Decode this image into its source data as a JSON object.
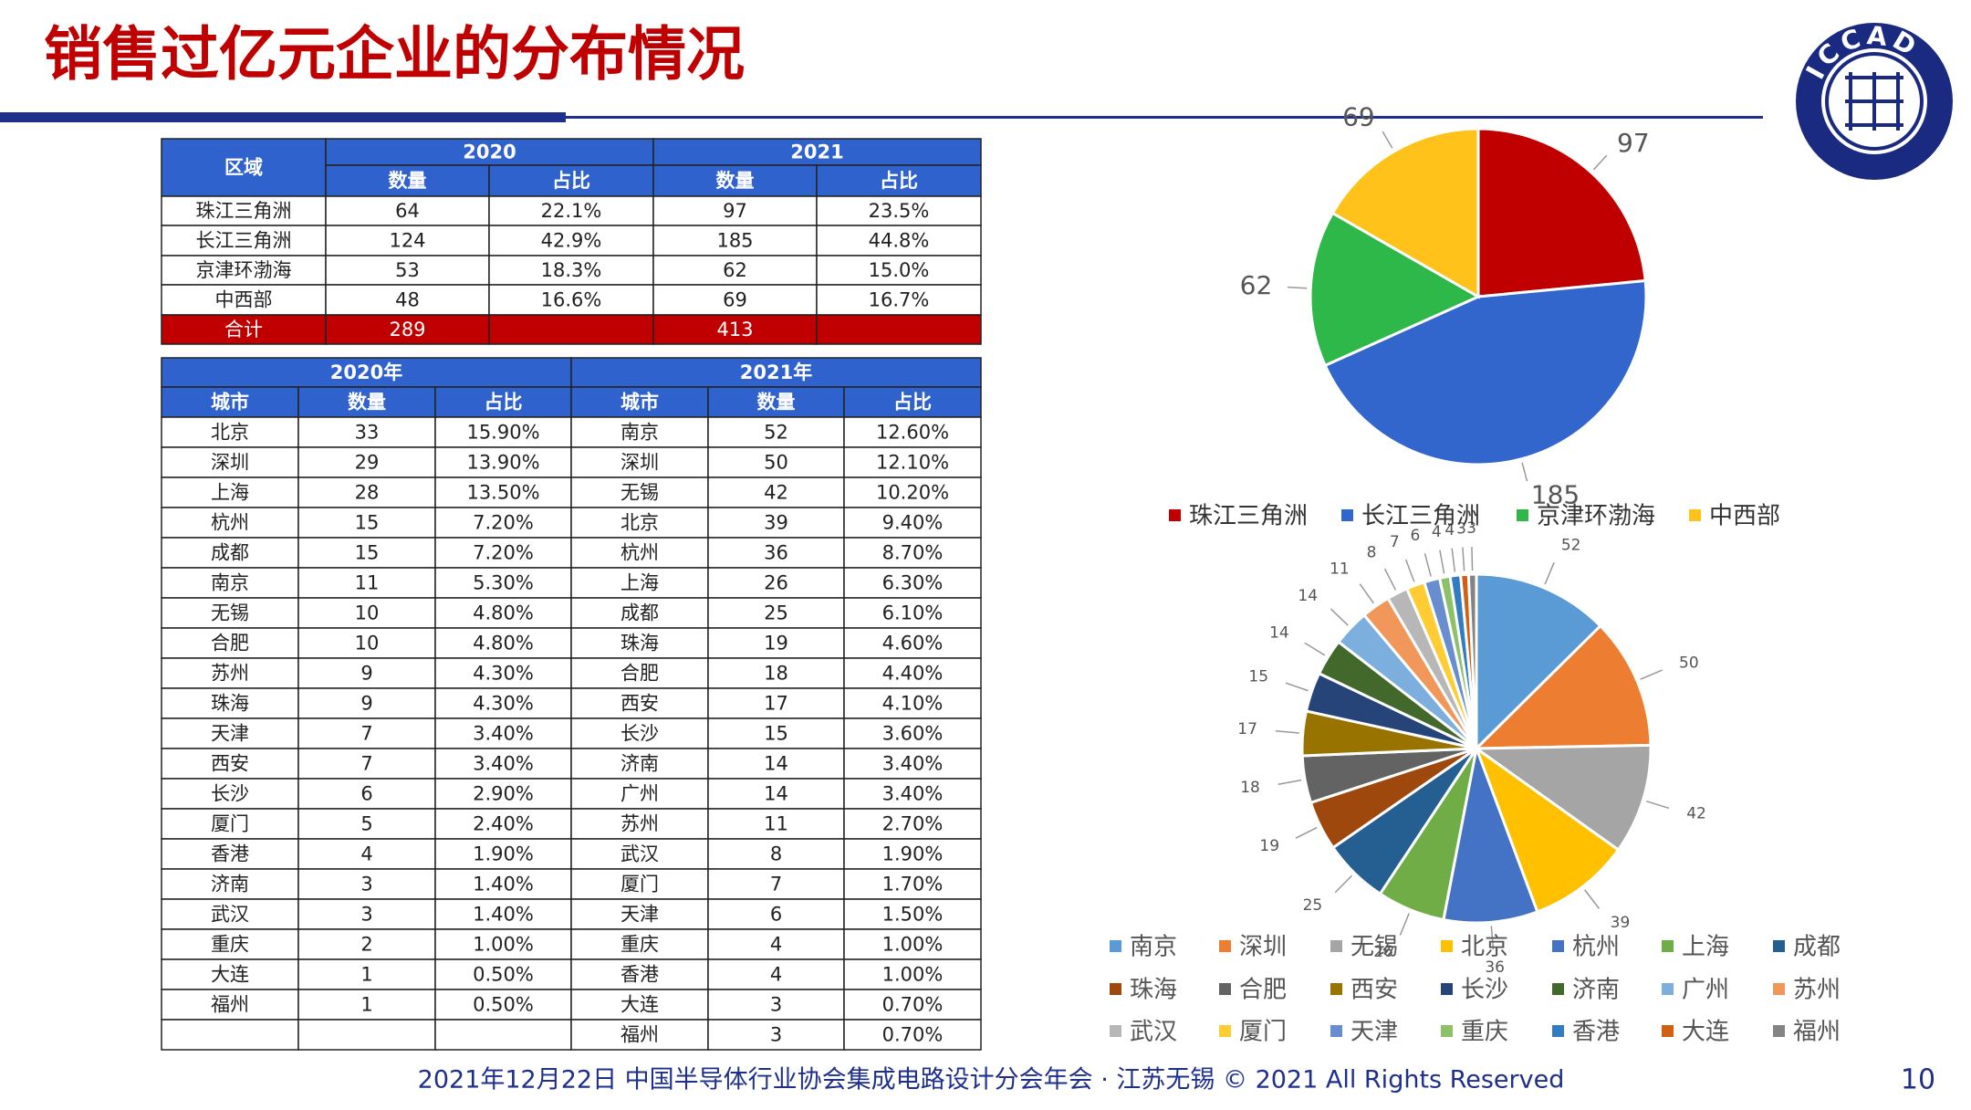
{
  "title": "销售过亿元企业的分布情况",
  "logo": "ICCAD",
  "region_table": {
    "region_header": "区域",
    "years": [
      "2020",
      "2021"
    ],
    "subheaders": [
      "数量",
      "占比"
    ],
    "rows": [
      [
        "珠江三角洲",
        64,
        "22.1%",
        97,
        "23.5%"
      ],
      [
        "长江三角洲",
        124,
        "42.9%",
        185,
        "44.8%"
      ],
      [
        "京津环渤海",
        53,
        "18.3%",
        62,
        "15.0%"
      ],
      [
        "中西部",
        48,
        "16.6%",
        69,
        "16.7%"
      ]
    ],
    "total": [
      "合计",
      289,
      413
    ]
  },
  "city_table": {
    "years": [
      "2020年",
      "2021年"
    ],
    "subheaders": [
      "城市",
      "数量",
      "占比"
    ],
    "y2020": [
      [
        "北京",
        33,
        "15.90%"
      ],
      [
        "深圳",
        29,
        "13.90%"
      ],
      [
        "上海",
        28,
        "13.50%"
      ],
      [
        "杭州",
        15,
        "7.20%"
      ],
      [
        "成都",
        15,
        "7.20%"
      ],
      [
        "南京",
        11,
        "5.30%"
      ],
      [
        "无锡",
        10,
        "4.80%"
      ],
      [
        "合肥",
        10,
        "4.80%"
      ],
      [
        "苏州",
        9,
        "4.30%"
      ],
      [
        "珠海",
        9,
        "4.30%"
      ],
      [
        "天津",
        7,
        "3.40%"
      ],
      [
        "西安",
        7,
        "3.40%"
      ],
      [
        "长沙",
        6,
        "2.90%"
      ],
      [
        "厦门",
        5,
        "2.40%"
      ],
      [
        "香港",
        4,
        "1.90%"
      ],
      [
        "济南",
        3,
        "1.40%"
      ],
      [
        "武汉",
        3,
        "1.40%"
      ],
      [
        "重庆",
        2,
        "1.00%"
      ],
      [
        "大连",
        1,
        "0.50%"
      ],
      [
        "福州",
        1,
        "0.50%"
      ]
    ],
    "y2021": [
      [
        "南京",
        52,
        "12.60%"
      ],
      [
        "深圳",
        50,
        "12.10%"
      ],
      [
        "无锡",
        42,
        "10.20%"
      ],
      [
        "北京",
        39,
        "9.40%"
      ],
      [
        "杭州",
        36,
        "8.70%"
      ],
      [
        "上海",
        26,
        "6.30%"
      ],
      [
        "成都",
        25,
        "6.10%"
      ],
      [
        "珠海",
        19,
        "4.60%"
      ],
      [
        "合肥",
        18,
        "4.40%"
      ],
      [
        "西安",
        17,
        "4.10%"
      ],
      [
        "长沙",
        15,
        "3.60%"
      ],
      [
        "济南",
        14,
        "3.40%"
      ],
      [
        "广州",
        14,
        "3.40%"
      ],
      [
        "苏州",
        11,
        "2.70%"
      ],
      [
        "武汉",
        8,
        "1.90%"
      ],
      [
        "厦门",
        7,
        "1.70%"
      ],
      [
        "天津",
        6,
        "1.50%"
      ],
      [
        "重庆",
        4,
        "1.00%"
      ],
      [
        "香港",
        4,
        "1.00%"
      ],
      [
        "大连",
        3,
        "0.70%"
      ],
      [
        "福州",
        3,
        "0.70%"
      ]
    ]
  },
  "chart_data": [
    {
      "type": "pie",
      "categories": [
        "珠江三角洲",
        "长江三角洲",
        "京津环渤海",
        "中西部"
      ],
      "values": [
        97,
        185,
        62,
        69
      ],
      "colors": [
        "#c00000",
        "#3366cc",
        "#2eb84a",
        "#ffc21a"
      ]
    },
    {
      "type": "pie",
      "categories": [
        "南京",
        "深圳",
        "无锡",
        "北京",
        "杭州",
        "上海",
        "成都",
        "珠海",
        "合肥",
        "西安",
        "长沙",
        "济南",
        "广州",
        "苏州",
        "武汉",
        "厦门",
        "天津",
        "重庆",
        "香港",
        "大连",
        "福州"
      ],
      "values": [
        52,
        50,
        42,
        39,
        36,
        26,
        25,
        19,
        18,
        17,
        15,
        14,
        14,
        11,
        8,
        7,
        6,
        4,
        4,
        3,
        3
      ],
      "colors": [
        "#5b9bd5",
        "#ed7d31",
        "#a5a5a5",
        "#ffc000",
        "#4472c4",
        "#70ad47",
        "#255e91",
        "#9e480e",
        "#636363",
        "#997300",
        "#264478",
        "#43682b",
        "#7cafdd",
        "#f1975a",
        "#b7b7b7",
        "#ffcd33",
        "#698ed0",
        "#8cc168",
        "#327dc2",
        "#d26012",
        "#848484"
      ]
    }
  ],
  "footer": "2021年12月22日 中国半导体行业协会集成电路设计分会年会 · 江苏无锡 © 2021 All Rights Reserved",
  "page_number": "10"
}
